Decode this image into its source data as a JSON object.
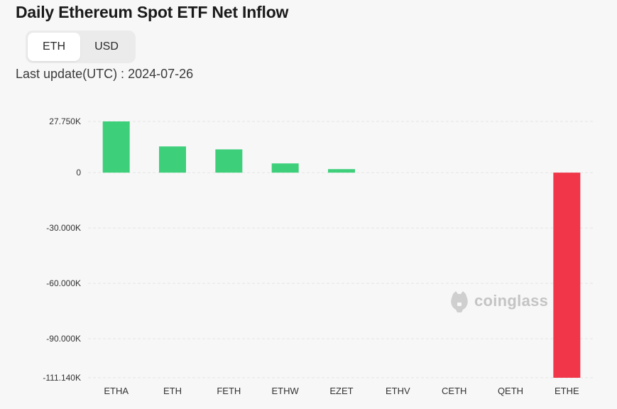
{
  "header": {
    "title": "Daily Ethereum Spot ETF Net Inflow",
    "toggle": {
      "eth_label": "ETH",
      "usd_label": "USD",
      "selected": "ETH"
    },
    "last_update": "Last update(UTC) : 2024-07-26"
  },
  "watermark": {
    "text": "coinglass",
    "icon": "coinglass-logo-icon"
  },
  "colors": {
    "positive": "#3ecf7b",
    "negative": "#f03648",
    "grid": "#e6e6e6",
    "text": "#333333"
  },
  "chart_data": {
    "type": "bar",
    "title": "Daily Ethereum Spot ETF Net Inflow",
    "xlabel": "",
    "ylabel": "",
    "unit": "ETH",
    "categories": [
      "ETHA",
      "ETH",
      "FETH",
      "ETHW",
      "EZET",
      "ETHV",
      "CETH",
      "QETH",
      "ETHE"
    ],
    "values": [
      27750,
      14200,
      12600,
      5000,
      1900,
      0,
      0,
      0,
      -111140
    ],
    "y_ticks": [
      27750,
      0,
      -30000,
      -60000,
      -90000,
      -111140
    ],
    "y_tick_labels": [
      "27.750K",
      "0",
      "-30.000K",
      "-60.000K",
      "-90.000K",
      "-111.140K"
    ],
    "ylim": [
      -111140,
      27750
    ],
    "grid": true,
    "legend": "none"
  }
}
